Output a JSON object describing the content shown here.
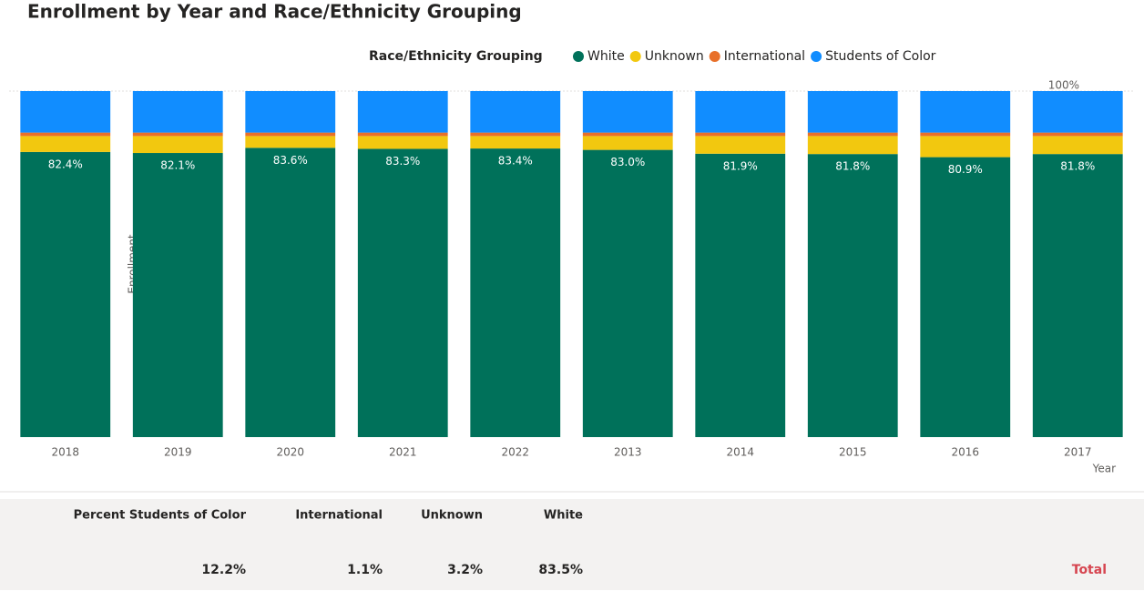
{
  "chart_data": {
    "type": "stacked_bar_100",
    "title": "Enrollment by Year and Race/Ethnicity Grouping",
    "legend_title": "Race/Ethnicity Grouping",
    "x_label": "Year",
    "y_label": "Enrollment",
    "categories": [
      "2018",
      "2019",
      "2020",
      "2021",
      "2022",
      "2013",
      "2014",
      "2015",
      "2016",
      "2017"
    ],
    "series": [
      {
        "name": "White",
        "color": "#00715a",
        "values": [
          82.4,
          82.1,
          83.6,
          83.3,
          83.4,
          83.0,
          81.9,
          81.8,
          80.9,
          81.8
        ],
        "value_labels": [
          "82.4%",
          "82.1%",
          "83.6%",
          "83.3%",
          "83.4%",
          "83.0%",
          "81.9%",
          "81.8%",
          "80.9%",
          "81.8%"
        ]
      },
      {
        "name": "Unknown",
        "color": "#f2c80f",
        "values": [
          4.6,
          4.9,
          3.4,
          3.7,
          3.6,
          4.0,
          5.1,
          5.2,
          6.1,
          5.2
        ]
      },
      {
        "name": "International",
        "color": "#e8702a",
        "values": [
          1,
          1,
          1,
          1,
          1,
          1,
          1,
          1,
          1,
          1
        ]
      },
      {
        "name": "Students of Color",
        "color": "#118dff",
        "values": [
          12,
          12,
          12,
          12,
          12,
          12,
          12,
          12,
          12,
          12
        ]
      }
    ],
    "ylim": [
      0,
      100
    ],
    "yticks": [
      {
        "value": 100,
        "label": "100%"
      }
    ],
    "legend_position": "top"
  },
  "table": {
    "columns": [
      "Percent Students of Color",
      "International",
      "Unknown",
      "White"
    ],
    "rows": [
      [
        "12.2%",
        "1.1%",
        "3.2%",
        "83.5%"
      ]
    ],
    "total_label": "Total"
  }
}
